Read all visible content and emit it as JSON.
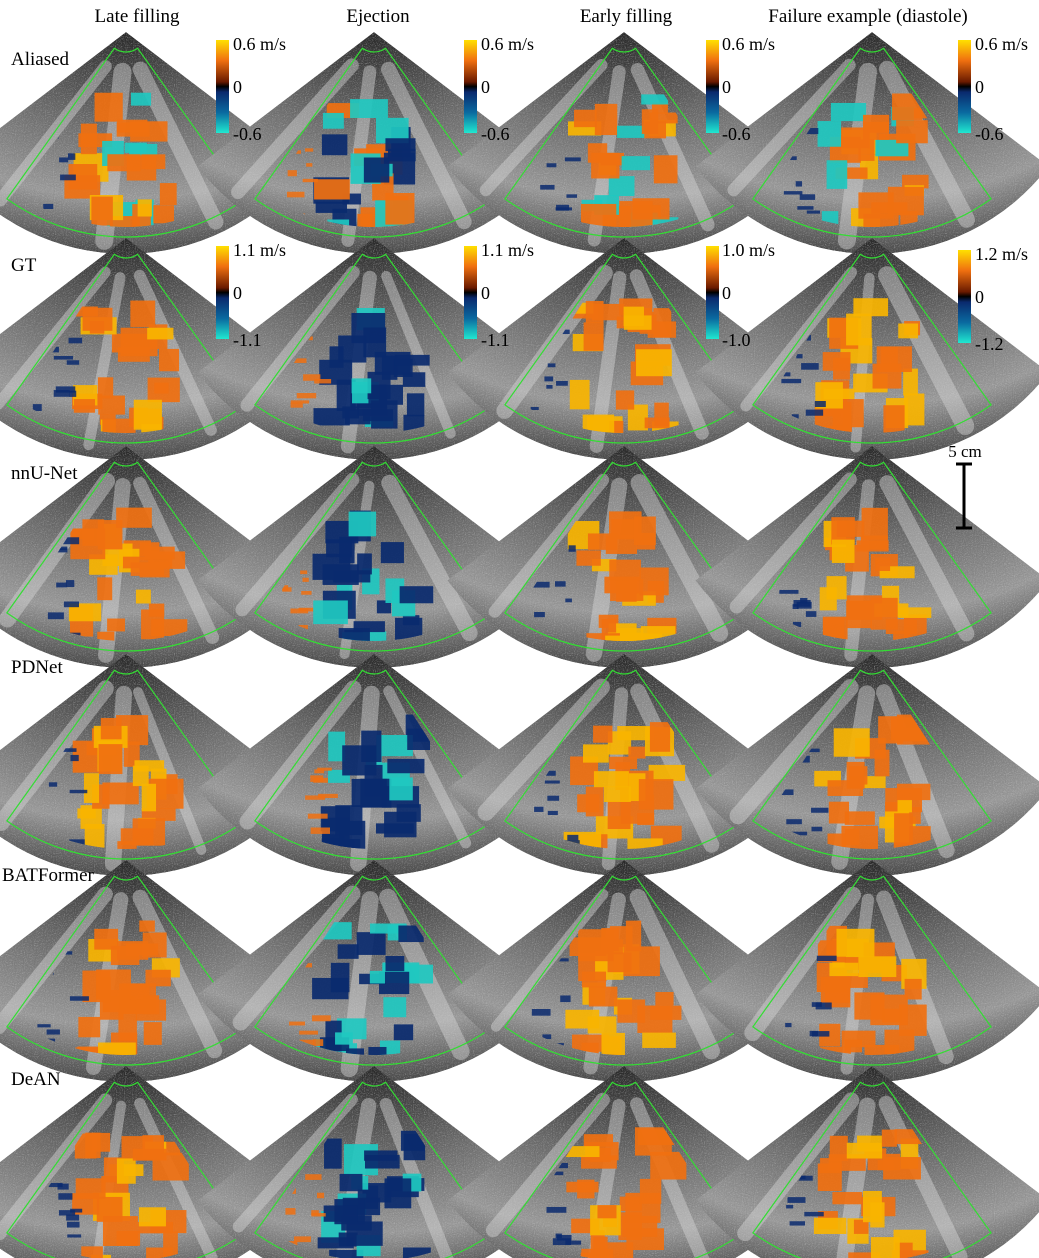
{
  "columns": [
    {
      "title": "Late filling"
    },
    {
      "title": "Ejection"
    },
    {
      "title": "Early filling"
    },
    {
      "title": "Failure example (diastole)"
    }
  ],
  "rows": [
    {
      "label": "Aliased"
    },
    {
      "label": "GT"
    },
    {
      "label": "nnU-Net"
    },
    {
      "label": "PDNet"
    },
    {
      "label": "BATFormer"
    },
    {
      "label": "DeAN"
    }
  ],
  "colorbars": [
    {
      "row": 0,
      "cells": [
        {
          "top": "0.6 m/s",
          "mid": "0",
          "bottom": "-0.6"
        },
        {
          "top": "0.6 m/s",
          "mid": "0",
          "bottom": "-0.6"
        },
        {
          "top": "0.6 m/s",
          "mid": "0",
          "bottom": "-0.6"
        },
        {
          "top": "0.6 m/s",
          "mid": "0",
          "bottom": "-0.6"
        }
      ]
    },
    {
      "row": 1,
      "cells": [
        {
          "top": "1.1 m/s",
          "mid": "0",
          "bottom": "-1.1"
        },
        {
          "top": "1.1 m/s",
          "mid": "0",
          "bottom": "-1.1"
        },
        {
          "top": "1.0 m/s",
          "mid": "0",
          "bottom": "-1.0"
        },
        {
          "top": "1.2 m/s",
          "mid": "0",
          "bottom": "-1.2"
        }
      ]
    }
  ],
  "scale_bar": {
    "label": "5 cm"
  },
  "colors": {
    "sector_outline": "#33dd33",
    "flow_toward": "#f07010",
    "flow_toward_high": "#f8b400",
    "flow_away": "#0a2a6e",
    "flow_away_high": "#1fc8c0",
    "background_tissue": "#5a5a5a"
  }
}
